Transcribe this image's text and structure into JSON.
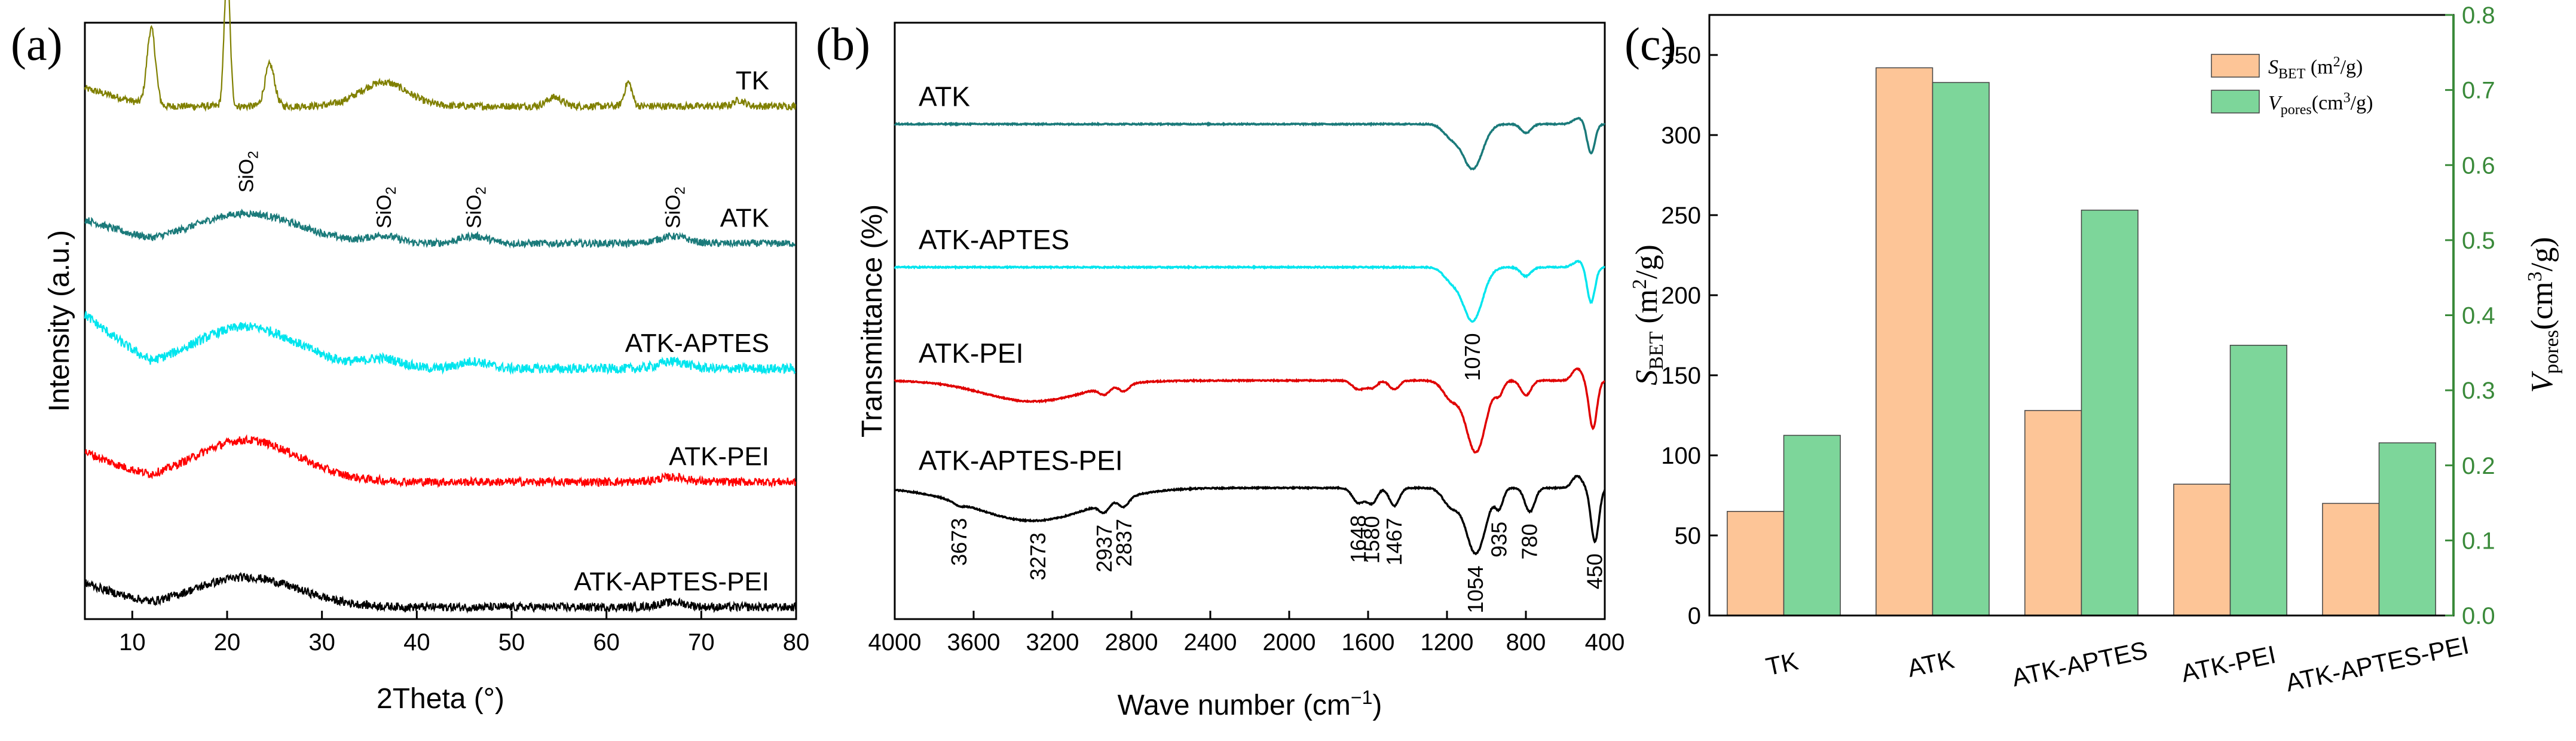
{
  "chart_data": [
    {
      "panel_label": "(a)",
      "type": "line",
      "xlabel": "2Theta (°)",
      "ylabel": "Intensity (a.u.)",
      "xlim": [
        5,
        80
      ],
      "x_ticks": [
        10,
        20,
        30,
        40,
        50,
        60,
        70,
        80
      ],
      "series": [
        {
          "name": "TK",
          "color": "#808000",
          "base": 0.86,
          "peaks": [
            [
              12.0,
              0.13,
              0.45
            ],
            [
              20.0,
              0.23,
              0.3
            ],
            [
              24.5,
              0.07,
              0.5
            ],
            [
              36.5,
              0.04,
              2.5
            ],
            [
              54.5,
              0.015,
              0.8
            ],
            [
              62.3,
              0.04,
              0.4
            ],
            [
              74.0,
              0.01,
              0.6
            ]
          ],
          "hump": [
            22,
            0.0,
            8
          ],
          "noise": 0.006,
          "offset_ramp": 0.03
        },
        {
          "name": "ATK",
          "color": "#1a7a7a",
          "base": 0.63,
          "peaks": [
            [
              36.5,
              0.012,
              1.5
            ],
            [
              46.0,
              0.012,
              1.5
            ],
            [
              67.0,
              0.012,
              1.5
            ]
          ],
          "hump": [
            22,
            0.05,
            5.5
          ],
          "noise": 0.006,
          "offset_ramp": 0.04
        },
        {
          "name": "ATK-APTES",
          "color": "#00e5ee",
          "base": 0.42,
          "peaks": [
            [
              36.5,
              0.015,
              2.0
            ],
            [
              46.0,
              0.012,
              1.5
            ],
            [
              67.0,
              0.012,
              1.5
            ]
          ],
          "hump": [
            22,
            0.07,
            5.5
          ],
          "noise": 0.008,
          "offset_ramp": 0.09
        },
        {
          "name": "ATK-PEI",
          "color": "#ff0000",
          "base": 0.23,
          "peaks": [
            [
              67.0,
              0.008,
              1.5
            ]
          ],
          "hump": [
            22,
            0.07,
            5.5
          ],
          "noise": 0.007,
          "offset_ramp": 0.05
        },
        {
          "name": "ATK-APTES-PEI",
          "color": "#000000",
          "base": 0.02,
          "peaks": [
            [
              67.0,
              0.008,
              1.5
            ]
          ],
          "hump": [
            22,
            0.05,
            5.5
          ],
          "noise": 0.007,
          "offset_ramp": 0.04
        }
      ],
      "annotations": [
        {
          "text": "SiO2",
          "x": 22
        },
        {
          "text": "SiO2",
          "x": 36.5
        },
        {
          "text": "SiO2",
          "x": 46
        },
        {
          "text": "SiO2",
          "x": 67
        }
      ]
    },
    {
      "panel_label": "(b)",
      "type": "line",
      "xlabel": "Wave number (cm−1)",
      "ylabel": "Transmittance (%)",
      "xlim": [
        4000,
        400
      ],
      "x_ticks": [
        4000,
        3600,
        3200,
        2800,
        2400,
        2000,
        1600,
        1200,
        800,
        400
      ],
      "series": [
        {
          "name": "ATK",
          "color": "#1a7a7a",
          "base": 0.83,
          "bands": [
            [
              1070,
              0.075,
              50
            ],
            [
              1180,
              0.02,
              40
            ],
            [
              800,
              0.015,
              25
            ],
            [
              470,
              0.05,
              20
            ],
            [
              530,
              -0.01,
              30
            ]
          ]
        },
        {
          "name": "ATK-APTES",
          "color": "#00e5ee",
          "base": 0.59,
          "bands": [
            [
              1070,
              0.09,
              50
            ],
            [
              1180,
              0.02,
              40
            ],
            [
              800,
              0.015,
              25
            ],
            [
              470,
              0.06,
              20
            ],
            [
              530,
              -0.01,
              30
            ]
          ]
        },
        {
          "name": "ATK-PEI",
          "color": "#e00000",
          "base": 0.4,
          "bands": [
            [
              3300,
              0.035,
              250
            ],
            [
              2937,
              0.012,
              25
            ],
            [
              2837,
              0.012,
              25
            ],
            [
              1648,
              0.015,
              30
            ],
            [
              1580,
              0.012,
              25
            ],
            [
              1467,
              0.015,
              25
            ],
            [
              1054,
              0.12,
              50
            ],
            [
              1180,
              0.03,
              40
            ],
            [
              935,
              0.02,
              20
            ],
            [
              800,
              0.025,
              25
            ],
            [
              460,
              0.08,
              20
            ],
            [
              540,
              -0.02,
              25
            ]
          ]
        },
        {
          "name": "ATK-APTES-PEI",
          "color": "#000000",
          "base": 0.22,
          "bands": [
            [
              3300,
              0.055,
              300
            ],
            [
              3673,
              0.005,
              30
            ],
            [
              2937,
              0.015,
              25
            ],
            [
              2837,
              0.015,
              25
            ],
            [
              1648,
              0.025,
              30
            ],
            [
              1580,
              0.025,
              25
            ],
            [
              1467,
              0.03,
              25
            ],
            [
              1054,
              0.11,
              50
            ],
            [
              1180,
              0.03,
              40
            ],
            [
              935,
              0.03,
              20
            ],
            [
              780,
              0.04,
              25
            ],
            [
              450,
              0.09,
              20
            ],
            [
              540,
              -0.02,
              25
            ]
          ]
        }
      ],
      "annotations": [
        {
          "text": "1070",
          "x": 1070,
          "series": 1
        },
        {
          "text": "3673",
          "x": 3673,
          "series": 3
        },
        {
          "text": "3273",
          "x": 3273,
          "series": 3
        },
        {
          "text": "2937",
          "x": 2937,
          "series": 3
        },
        {
          "text": "2837",
          "x": 2837,
          "series": 3
        },
        {
          "text": "1648",
          "x": 1648,
          "series": 3
        },
        {
          "text": "1580",
          "x": 1580,
          "series": 3
        },
        {
          "text": "1467",
          "x": 1467,
          "series": 3
        },
        {
          "text": "1054",
          "x": 1054,
          "series": 3
        },
        {
          "text": "935",
          "x": 935,
          "series": 3
        },
        {
          "text": "780",
          "x": 780,
          "series": 3
        },
        {
          "text": "450",
          "x": 450,
          "series": 3
        }
      ]
    },
    {
      "panel_label": "(c)",
      "type": "bar",
      "categories": [
        "TK",
        "ATK",
        "ATK-APTES",
        "ATK-PEI",
        "ATK-APTES-PEI"
      ],
      "ylabel_left": "SBET (m2/g)",
      "ylabel_right": "Vpores(cm3/g)",
      "ylim_left": [
        0,
        375
      ],
      "ylim_right": [
        0,
        0.8
      ],
      "left_ticks": [
        0,
        50,
        100,
        150,
        200,
        250,
        300,
        350
      ],
      "right_ticks": [
        "0.0",
        "0.1",
        "0.2",
        "0.3",
        "0.4",
        "0.5",
        "0.6",
        "0.7",
        "0.8"
      ],
      "legend_position": "top-right",
      "series": [
        {
          "name": "SBET (m2/g)",
          "axis": "left",
          "color": "#fdc597",
          "values": [
            65,
            342,
            128,
            82,
            70
          ]
        },
        {
          "name": "Vpores(cm3/g)",
          "axis": "right",
          "color": "#7dd69a",
          "values": [
            0.24,
            0.71,
            0.54,
            0.36,
            0.23
          ]
        }
      ],
      "right_axis_color": "#3a8a3a"
    }
  ]
}
